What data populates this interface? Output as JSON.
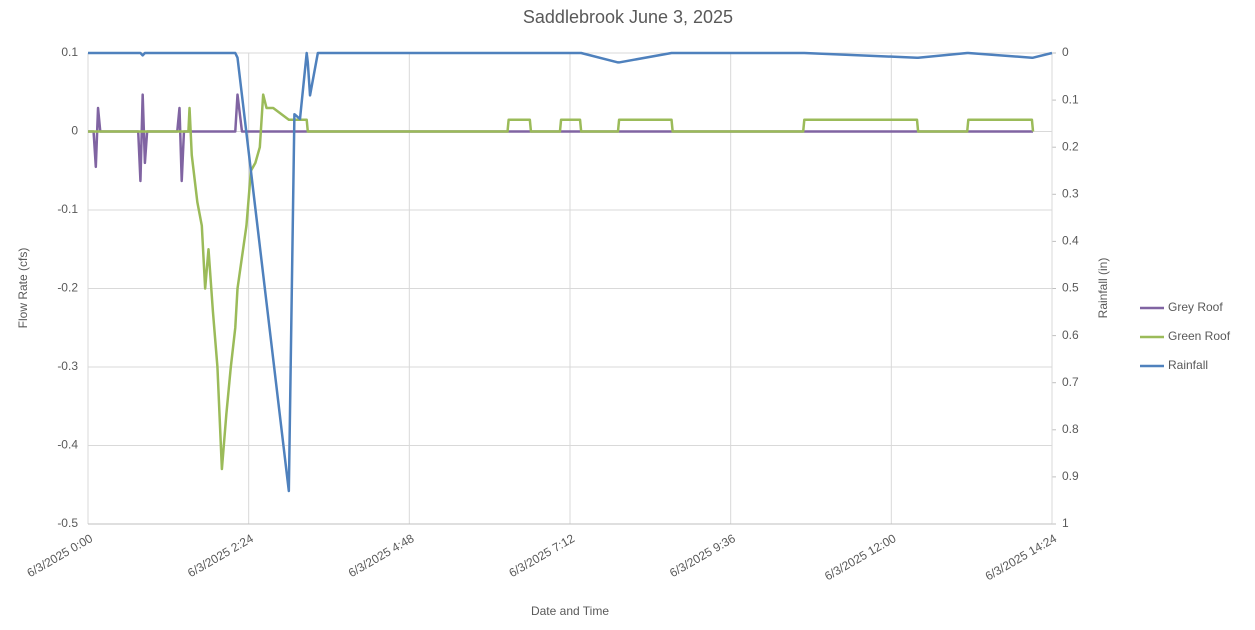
{
  "chart_data": {
    "type": "line",
    "title": "Saddlebrook June 3, 2025",
    "xlabel": "Date and Time",
    "ylabel": "Flow Rate (cfs)",
    "y2label": "Rainfall (in)",
    "x": [
      "6/3/2025 0:00",
      "6/3/2025 0:05",
      "6/3/2025 0:07",
      "6/3/2025 0:09",
      "6/3/2025 0:11",
      "6/3/2025 0:45",
      "6/3/2025 0:47",
      "6/3/2025 0:49",
      "6/3/2025 0:51",
      "6/3/2025 0:53",
      "6/3/2025 1:20",
      "6/3/2025 1:22",
      "6/3/2025 1:24",
      "6/3/2025 1:26",
      "6/3/2025 1:30",
      "6/3/2025 1:31",
      "6/3/2025 1:33",
      "6/3/2025 1:38",
      "6/3/2025 1:42",
      "6/3/2025 1:45",
      "6/3/2025 1:48",
      "6/3/2025 1:52",
      "6/3/2025 1:56",
      "6/3/2025 2:00",
      "6/3/2025 2:04",
      "6/3/2025 2:08",
      "6/3/2025 2:12",
      "6/3/2025 2:14",
      "6/3/2025 2:18",
      "6/3/2025 2:22",
      "6/3/2025 2:26",
      "6/3/2025 2:30",
      "6/3/2025 2:34",
      "6/3/2025 2:37",
      "6/3/2025 2:40",
      "6/3/2025 2:46",
      "6/3/2025 3:00",
      "6/3/2025 3:05",
      "6/3/2025 3:10",
      "6/3/2025 3:16",
      "6/3/2025 3:17",
      "6/3/2025 3:19",
      "6/3/2025 3:26",
      "6/3/2025 5:00",
      "6/3/2025 6:16",
      "6/3/2025 6:17",
      "6/3/2025 6:36",
      "6/3/2025 6:37",
      "6/3/2025 7:03",
      "6/3/2025 7:04",
      "6/3/2025 7:21",
      "6/3/2025 7:22",
      "6/3/2025 7:55",
      "6/3/2025 7:56",
      "6/3/2025 8:43",
      "6/3/2025 8:44",
      "6/3/2025 10:00",
      "6/3/2025 10:41",
      "6/3/2025 10:42",
      "6/3/2025 12:23",
      "6/3/2025 12:24",
      "6/3/2025 13:08",
      "6/3/2025 13:09",
      "6/3/2025 14:06",
      "6/3/2025 14:07",
      "6/3/2025 14:24"
    ],
    "series": [
      {
        "name": "Grey Roof",
        "color": "#8064a2",
        "values": [
          0,
          0,
          -0.045,
          0.03,
          0,
          0,
          -0.063,
          0.047,
          -0.04,
          0,
          0,
          0.03,
          -0.063,
          0,
          0,
          0,
          0,
          0,
          0,
          0,
          0,
          0,
          0,
          0,
          0,
          0,
          0,
          0.047,
          0,
          0,
          0,
          0,
          0,
          0,
          0,
          0,
          0,
          0,
          0,
          0,
          0,
          0,
          0,
          0,
          0,
          0,
          0,
          0,
          0,
          0,
          0,
          0,
          0,
          0,
          0,
          0,
          0,
          0,
          0,
          0,
          0,
          0,
          0,
          0,
          0,
          null
        ]
      },
      {
        "name": "Green Roof",
        "color": "#9bbb59",
        "values": [
          0,
          0,
          0,
          0,
          0,
          0,
          0,
          0,
          0,
          0,
          0,
          0,
          0,
          0,
          0,
          0.03,
          -0.03,
          -0.09,
          -0.12,
          -0.2,
          -0.15,
          -0.23,
          -0.3,
          -0.43,
          -0.36,
          -0.3,
          -0.25,
          -0.2,
          -0.16,
          -0.12,
          -0.05,
          -0.04,
          -0.02,
          0.047,
          0.03,
          0.03,
          0.015,
          0.015,
          0.015,
          0.015,
          0,
          0,
          0,
          0,
          0,
          0.015,
          0.015,
          0,
          0,
          0.015,
          0.015,
          0,
          0,
          0.015,
          0.015,
          0,
          0,
          0,
          0.015,
          0.015,
          0,
          0,
          0.015,
          0.015,
          0,
          null
        ]
      },
      {
        "name": "Rainfall",
        "color": "#4f81bd",
        "axis": "y2",
        "values": [
          0,
          0,
          0,
          0,
          0,
          0,
          0,
          0.005,
          0,
          0,
          0,
          0,
          0,
          0,
          0,
          0,
          0,
          0,
          0,
          0,
          0,
          0,
          0,
          0,
          0,
          0,
          0,
          0.01,
          0.09,
          0.17,
          0.25,
          0.33,
          0.41,
          0.47,
          0.53,
          0.65,
          0.93,
          0.13,
          0.14,
          0,
          0.02,
          0.09,
          0,
          0,
          0,
          0,
          0,
          0,
          0,
          0,
          0,
          0,
          0.02,
          0.02,
          0,
          0,
          0,
          0,
          0,
          0.01,
          0.01,
          0,
          0,
          0.01,
          0.01,
          0
        ]
      }
    ],
    "xlim": [
      "6/3/2025 0:00",
      "6/3/2025 14:24"
    ],
    "xticks": [
      "6/3/2025 0:00",
      "6/3/2025 2:24",
      "6/3/2025 4:48",
      "6/3/2025 7:12",
      "6/3/2025 9:36",
      "6/3/2025 12:00",
      "6/3/2025 14:24"
    ],
    "ylim": [
      -0.5,
      0.1
    ],
    "yticks": [
      0.1,
      0,
      -0.1,
      -0.2,
      -0.3,
      -0.4,
      -0.5
    ],
    "y2lim": [
      1,
      0
    ],
    "y2ticks": [
      0,
      0.1,
      0.2,
      0.3,
      0.4,
      0.5,
      0.6,
      0.7,
      0.8,
      0.9,
      1
    ],
    "grid": true,
    "legend": "right"
  }
}
